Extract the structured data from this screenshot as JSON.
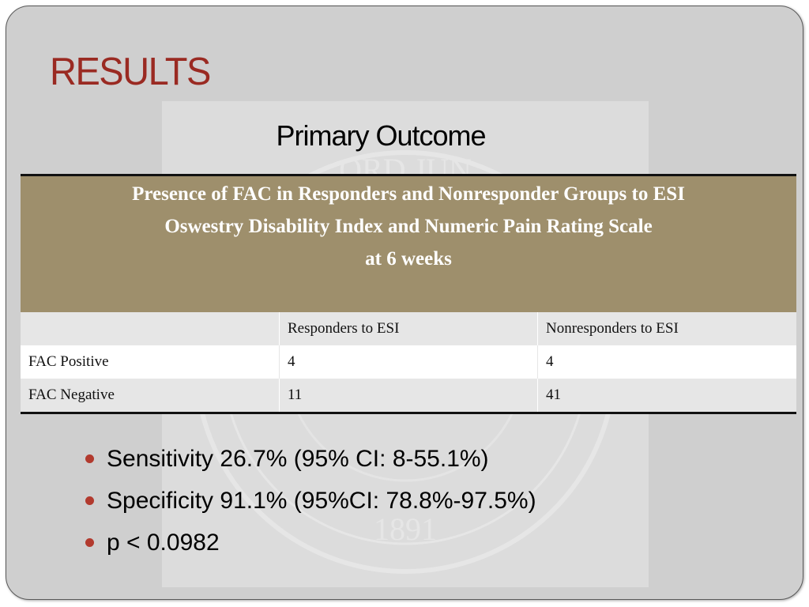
{
  "slide": {
    "title": "RESULTS",
    "subtitle": "Primary Outcome"
  },
  "table": {
    "caption_lines": [
      "Presence of FAC in Responders and Nonresponder Groups to ESI",
      "Oswestry Disability Index and Numeric Pain Rating Scale",
      "at 6 weeks"
    ],
    "columns": [
      "",
      "Responders to ESI",
      "Nonresponders to ESI"
    ],
    "rows": [
      {
        "label": "FAC Positive",
        "responders": "4",
        "nonresponders": "4"
      },
      {
        "label": "FAC Negative",
        "responders": "11",
        "nonresponders": "41"
      }
    ]
  },
  "bullets": [
    "Sensitivity 26.7% (95% CI: 8-55.1%)",
    "Specificity 91.1% (95%CI: 78.8%-97.5%)",
    "p < 0.0982"
  ],
  "watermark": {
    "seal_text": "ORD JUN",
    "year": "1891"
  },
  "colors": {
    "title": "#9a2a22",
    "table_header": "#9e8f6c",
    "bullet": "#b23a2e",
    "slide_bg": "#cfcfcf"
  }
}
